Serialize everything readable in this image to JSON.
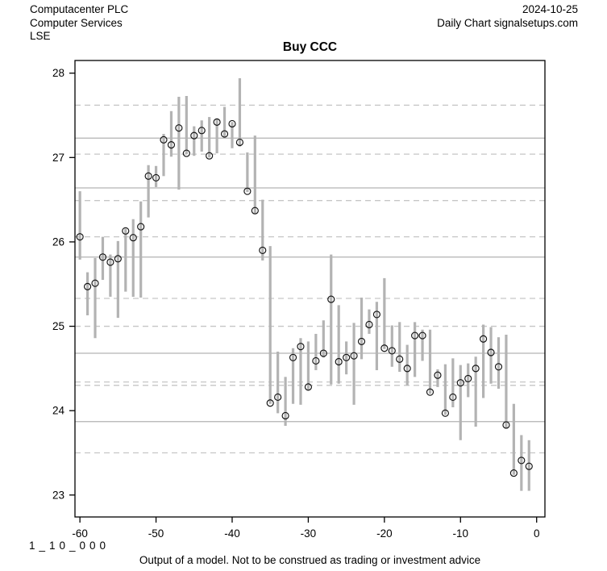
{
  "header": {
    "company": "Computacenter PLC",
    "sector": "Computer Services",
    "exchange": "LSE",
    "date": "2024-10-25",
    "source": "Daily Chart signalsetups.com"
  },
  "title": "Buy CCC",
  "footer": {
    "code": "1_10_000",
    "disclaimer": "Output of a model. Not to be construed as trading or investment advice"
  },
  "colors": {
    "bar": "#b3b3b3",
    "close_marker": "#111111",
    "level_solid": "#b3b3b3",
    "level_dashed": "#c6c6c6",
    "axis": "#000000"
  },
  "chart_data": {
    "type": "bar",
    "subtype": "high-low-close",
    "title": "Buy CCC",
    "xlabel": "",
    "ylabel": "",
    "grid": "horizontal support/resistance levels",
    "legend": "none",
    "x_axis": {
      "ticks": [
        -60,
        -50,
        -40,
        -30,
        -20,
        -10,
        0
      ],
      "lim": [
        -60.65,
        1.09
      ]
    },
    "y_axis": {
      "ticks": [
        23,
        24,
        25,
        26,
        27,
        28
      ],
      "lim": [
        22.74,
        28.15
      ]
    },
    "levels": {
      "solid": [
        27.23,
        26.64,
        25.82,
        24.68,
        23.87
      ],
      "dashed": [
        27.62,
        27.04,
        26.49,
        26.06,
        25.33,
        25.0,
        24.34,
        24.3,
        23.5
      ]
    },
    "bars": [
      {
        "day": -60,
        "high": 26.6,
        "low": 25.79,
        "close": 26.06
      },
      {
        "day": -59,
        "high": 25.64,
        "low": 25.13,
        "close": 25.47
      },
      {
        "day": -58,
        "high": 25.81,
        "low": 24.86,
        "close": 25.51
      },
      {
        "day": -57,
        "high": 26.06,
        "low": 25.55,
        "close": 25.82
      },
      {
        "day": -56,
        "high": 25.85,
        "low": 25.35,
        "close": 25.76
      },
      {
        "day": -55,
        "high": 26.01,
        "low": 25.1,
        "close": 25.8
      },
      {
        "day": -54,
        "high": 26.16,
        "low": 25.41,
        "close": 26.13
      },
      {
        "day": -53,
        "high": 26.27,
        "low": 25.35,
        "close": 26.05
      },
      {
        "day": -52,
        "high": 26.48,
        "low": 25.34,
        "close": 26.18
      },
      {
        "day": -51,
        "high": 26.91,
        "low": 26.29,
        "close": 26.78
      },
      {
        "day": -50,
        "high": 26.9,
        "low": 26.65,
        "close": 26.76
      },
      {
        "day": -49,
        "high": 27.28,
        "low": 26.78,
        "close": 27.21
      },
      {
        "day": -48,
        "high": 27.55,
        "low": 27.01,
        "close": 27.15
      },
      {
        "day": -47,
        "high": 27.72,
        "low": 26.62,
        "close": 27.35
      },
      {
        "day": -46,
        "high": 27.73,
        "low": 27.04,
        "close": 27.05
      },
      {
        "day": -45,
        "high": 27.37,
        "low": 27.02,
        "close": 27.26
      },
      {
        "day": -44,
        "high": 27.44,
        "low": 27.07,
        "close": 27.32
      },
      {
        "day": -43,
        "high": 27.48,
        "low": 27.0,
        "close": 27.02
      },
      {
        "day": -42,
        "high": 27.46,
        "low": 27.05,
        "close": 27.42
      },
      {
        "day": -41,
        "high": 27.6,
        "low": 27.24,
        "close": 27.28
      },
      {
        "day": -40,
        "high": 27.42,
        "low": 27.11,
        "close": 27.4
      },
      {
        "day": -39,
        "high": 27.94,
        "low": 27.13,
        "close": 27.18
      },
      {
        "day": -38,
        "high": 27.06,
        "low": 26.59,
        "close": 26.6
      },
      {
        "day": -37,
        "high": 27.26,
        "low": 26.33,
        "close": 26.37
      },
      {
        "day": -36,
        "high": 26.5,
        "low": 25.78,
        "close": 25.9
      },
      {
        "day": -35,
        "high": 25.95,
        "low": 24.08,
        "close": 24.09
      },
      {
        "day": -34,
        "high": 24.7,
        "low": 23.97,
        "close": 24.16
      },
      {
        "day": -33,
        "high": 24.4,
        "low": 23.82,
        "close": 23.94
      },
      {
        "day": -32,
        "high": 24.74,
        "low": 24.08,
        "close": 24.63
      },
      {
        "day": -31,
        "high": 24.86,
        "low": 24.07,
        "close": 24.76
      },
      {
        "day": -30,
        "high": 24.82,
        "low": 24.24,
        "close": 24.28
      },
      {
        "day": -29,
        "high": 24.91,
        "low": 24.48,
        "close": 24.59
      },
      {
        "day": -28,
        "high": 25.07,
        "low": 24.63,
        "close": 24.68
      },
      {
        "day": -27,
        "high": 25.85,
        "low": 24.31,
        "close": 25.32
      },
      {
        "day": -26,
        "high": 25.25,
        "low": 24.32,
        "close": 24.58
      },
      {
        "day": -25,
        "high": 24.82,
        "low": 24.43,
        "close": 24.63
      },
      {
        "day": -24,
        "high": 25.04,
        "low": 24.07,
        "close": 24.65
      },
      {
        "day": -23,
        "high": 25.34,
        "low": 24.61,
        "close": 24.82
      },
      {
        "day": -22,
        "high": 25.2,
        "low": 24.91,
        "close": 25.02
      },
      {
        "day": -21,
        "high": 25.29,
        "low": 24.48,
        "close": 25.14
      },
      {
        "day": -20,
        "high": 25.57,
        "low": 24.73,
        "close": 24.74
      },
      {
        "day": -19,
        "high": 25.01,
        "low": 24.52,
        "close": 24.71
      },
      {
        "day": -18,
        "high": 25.05,
        "low": 24.46,
        "close": 24.61
      },
      {
        "day": -17,
        "high": 24.78,
        "low": 24.3,
        "close": 24.5
      },
      {
        "day": -16,
        "high": 25.05,
        "low": 24.4,
        "close": 24.89
      },
      {
        "day": -15,
        "high": 24.96,
        "low": 24.59,
        "close": 24.89
      },
      {
        "day": -14,
        "high": 24.96,
        "low": 24.2,
        "close": 24.22
      },
      {
        "day": -13,
        "high": 24.49,
        "low": 24.28,
        "close": 24.42
      },
      {
        "day": -12,
        "high": 24.55,
        "low": 23.95,
        "close": 23.97
      },
      {
        "day": -11,
        "high": 24.62,
        "low": 24.04,
        "close": 24.16
      },
      {
        "day": -10,
        "high": 24.54,
        "low": 23.65,
        "close": 24.33
      },
      {
        "day": -9,
        "high": 24.56,
        "low": 24.16,
        "close": 24.38
      },
      {
        "day": -8,
        "high": 24.64,
        "low": 23.81,
        "close": 24.5
      },
      {
        "day": -7,
        "high": 25.02,
        "low": 24.15,
        "close": 24.85
      },
      {
        "day": -6,
        "high": 24.99,
        "low": 24.32,
        "close": 24.69
      },
      {
        "day": -5,
        "high": 24.87,
        "low": 24.26,
        "close": 24.52
      },
      {
        "day": -4,
        "high": 24.9,
        "low": 23.79,
        "close": 23.83
      },
      {
        "day": -3,
        "high": 24.08,
        "low": 23.24,
        "close": 23.26
      },
      {
        "day": -2,
        "high": 23.71,
        "low": 23.05,
        "close": 23.41
      },
      {
        "day": -1,
        "high": 23.65,
        "low": 23.05,
        "close": 23.34
      }
    ]
  }
}
